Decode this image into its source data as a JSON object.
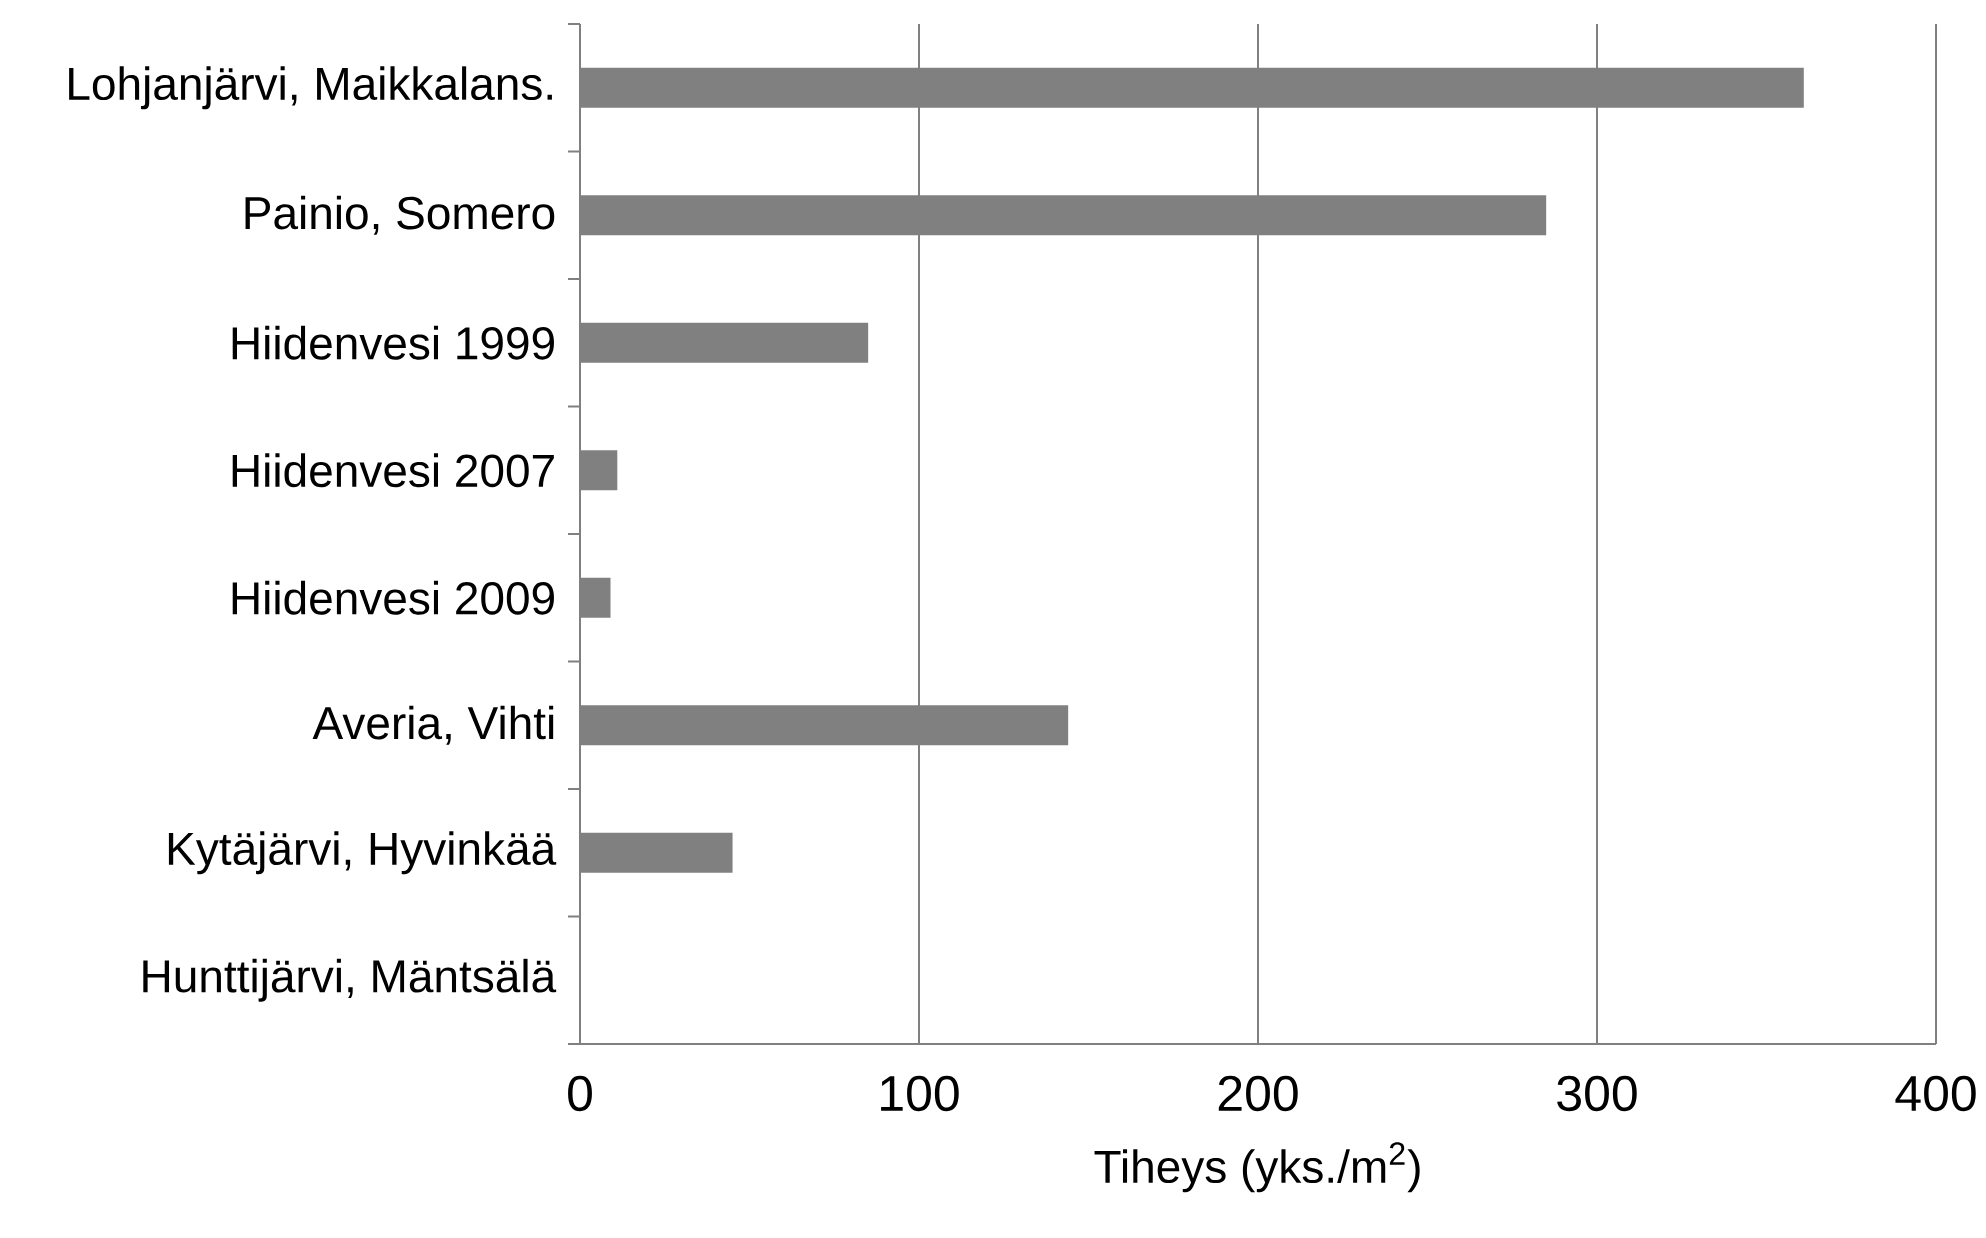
{
  "chart_data": {
    "type": "bar",
    "orientation": "horizontal",
    "xlabel": "Tiheys (yks./m$^{2}$)",
    "categories": [
      "Lohjanjärvi, Maikkalans.",
      "Painio, Somero",
      "Hiidenvesi 1999",
      "Hiidenvesi 2007",
      "Hiidenvesi 2009",
      "Averia, Vihti",
      "Kytäjärvi, Hyvinkää",
      "Hunttijärvi, Mäntsälä"
    ],
    "values": [
      361,
      285,
      85,
      11,
      9,
      144,
      45,
      0
    ],
    "color": "#808080",
    "xlim": [
      0,
      400
    ],
    "xticks": [
      0,
      100,
      200,
      300,
      400
    ],
    "grid": "x"
  }
}
